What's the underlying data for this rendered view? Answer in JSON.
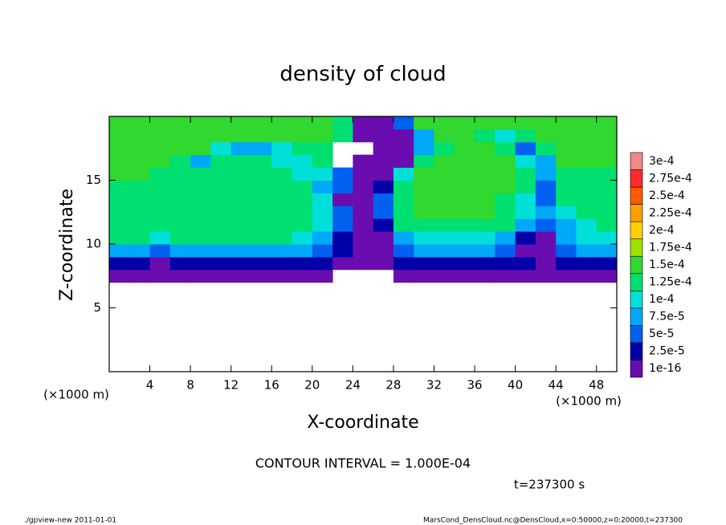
{
  "chart_data": {
    "type": "heatmap",
    "title": "density of cloud",
    "xlabel": "X-coordinate",
    "ylabel": "Z-coordinate",
    "y_unit_label": "(×1000 m)",
    "x_unit_label": "(×1000 m)",
    "contour_label": "CONTOUR INTERVAL = 1.000E-04",
    "time_label": "t=237300 s",
    "footer_left": "./gpview-new  2011-01-01",
    "footer_right": "MarsCond_DensCloud.nc@DensCloud,x=0:50000,z=0:20000,t=237300",
    "xlim": [
      0,
      50
    ],
    "ylim": [
      0,
      20
    ],
    "xticks": [
      4,
      8,
      12,
      16,
      20,
      24,
      28,
      32,
      36,
      40,
      44,
      48
    ],
    "yticks": [
      5,
      10,
      15
    ],
    "x": [
      1,
      3,
      5,
      7,
      9,
      11,
      13,
      15,
      17,
      19,
      21,
      23,
      25,
      27,
      29,
      31,
      33,
      35,
      37,
      39,
      41,
      43,
      45,
      47,
      49
    ],
    "y": [
      7.5,
      8.5,
      9.5,
      10.5,
      11.5,
      12.5,
      13.5,
      14.5,
      15.5,
      16.5,
      17.5,
      18.5,
      19.5
    ],
    "values": [
      [
        1e-05,
        1e-05,
        1e-05,
        1e-05,
        1e-05,
        1e-05,
        1e-05,
        1e-05,
        1e-05,
        1e-05,
        1e-05,
        null,
        null,
        null,
        1e-05,
        1e-05,
        1e-05,
        1e-05,
        1e-05,
        1e-05,
        1e-05,
        1e-05,
        1e-05,
        1e-05,
        1e-05
      ],
      [
        4e-05,
        4e-05,
        2e-05,
        4e-05,
        4e-05,
        4e-05,
        4e-05,
        4e-05,
        4e-05,
        4e-05,
        3e-05,
        1e-05,
        1e-05,
        1e-05,
        3e-05,
        4e-05,
        4e-05,
        4e-05,
        4e-05,
        4e-05,
        3e-05,
        1e-05,
        3e-05,
        4e-05,
        4e-05
      ],
      [
        8e-05,
        8e-05,
        5e-05,
        8e-05,
        8e-05,
        8e-05,
        8e-05,
        8e-05,
        8e-05,
        8e-05,
        7e-05,
        3e-05,
        1e-05,
        2e-05,
        6e-05,
        8e-05,
        8e-05,
        8e-05,
        8e-05,
        6e-05,
        2e-05,
        1e-05,
        6e-05,
        8e-05,
        8e-05
      ],
      [
        0.00013,
        0.00013,
        0.00012,
        0.00013,
        0.00013,
        0.00013,
        0.00013,
        0.00013,
        0.00013,
        0.00012,
        9e-05,
        4e-05,
        1e-05,
        1e-05,
        9e-05,
        0.00011,
        0.00011,
        0.00011,
        0.00011,
        9e-05,
        3e-05,
        2e-05,
        9e-05,
        0.00011,
        0.00011
      ],
      [
        0.00014,
        0.00014,
        0.000135,
        0.00013,
        0.00013,
        0.00013,
        0.00013,
        0.00013,
        0.00013,
        0.00013,
        0.00012,
        6e-05,
        1e-05,
        3e-05,
        0.00013,
        0.00014,
        0.00014,
        0.00014,
        0.00014,
        0.00013,
        8e-05,
        7e-05,
        9e-05,
        0.00012,
        0.00013
      ],
      [
        0.000145,
        0.000145,
        0.00014,
        0.00013,
        0.00013,
        0.00013,
        0.00013,
        0.00013,
        0.00013,
        0.00013,
        0.00012,
        6e-05,
        1e-05,
        6e-05,
        0.00014,
        0.00015,
        0.00015,
        0.00015,
        0.00015,
        0.00014,
        0.00011,
        8e-05,
        0.0001,
        0.00013,
        0.00013
      ],
      [
        0.000145,
        0.000145,
        0.00014,
        0.00013,
        0.000135,
        0.000135,
        0.000135,
        0.000135,
        0.000135,
        0.00013,
        0.00011,
        1e-05,
        1e-05,
        5e-05,
        0.00014,
        0.00015,
        0.00015,
        0.00015,
        0.00015,
        0.000145,
        0.00012,
        6e-05,
        0.00013,
        0.00014,
        0.00014
      ],
      [
        0.000145,
        0.000145,
        0.00014,
        0.000135,
        0.000135,
        0.000135,
        0.000135,
        0.000135,
        0.000135,
        0.00013,
        8e-05,
        5e-05,
        1e-05,
        4e-05,
        0.00014,
        0.00015,
        0.00015,
        0.00015,
        0.00015,
        0.00015,
        0.00013,
        7e-05,
        0.00014,
        0.00014,
        0.00014
      ],
      [
        0.00015,
        0.00015,
        0.000145,
        0.00013,
        0.000135,
        0.000135,
        0.000135,
        0.000135,
        0.00013,
        0.00011,
        0.00012,
        7e-05,
        1e-05,
        1e-05,
        0.00012,
        0.00015,
        0.00015,
        0.00015,
        0.00015,
        0.00015,
        0.00013,
        8e-05,
        0.00014,
        0.00014,
        0.00014
      ],
      [
        0.00015,
        0.00015,
        0.00015,
        0.00014,
        9e-05,
        0.00013,
        0.00013,
        0.00013,
        0.00012,
        0.0001,
        0.00013,
        null,
        1e-05,
        1e-05,
        1e-05,
        0.00013,
        0.00015,
        0.00015,
        0.00015,
        0.00015,
        0.00011,
        9e-05,
        0.00015,
        0.00015,
        0.00015
      ],
      [
        0.00015,
        0.00015,
        0.00015,
        0.00015,
        0.00015,
        0.00012,
        9e-05,
        9e-05,
        0.00012,
        0.00014,
        0.00014,
        null,
        null,
        1e-05,
        2e-05,
        8e-05,
        0.00014,
        0.00015,
        0.00015,
        0.00013,
        7e-05,
        0.00014,
        0.00015,
        0.00015,
        0.00015
      ],
      [
        0.00015,
        0.00015,
        0.00015,
        0.00015,
        0.00015,
        0.00015,
        0.00015,
        0.00015,
        0.00015,
        0.00015,
        0.00015,
        0.00013,
        1e-05,
        1e-05,
        1e-05,
        9e-05,
        0.00015,
        0.00015,
        0.00014,
        0.00012,
        0.00014,
        0.00015,
        0.00015,
        0.00015,
        0.00015
      ],
      [
        0.00015,
        0.00015,
        0.00015,
        0.00015,
        0.00015,
        0.00015,
        0.00015,
        0.00015,
        0.00015,
        0.00015,
        0.00015,
        0.00013,
        1e-05,
        1e-05,
        6e-05,
        0.00015,
        0.00015,
        0.00015,
        0.00015,
        0.00015,
        0.00015,
        0.00015,
        0.00015,
        0.00015,
        0.00015
      ]
    ],
    "colorbar": {
      "levels": [
        {
          "value": 1e-16,
          "label": "1e-16"
        },
        {
          "value": 2.5e-05,
          "label": "2.5e-5"
        },
        {
          "value": 5e-05,
          "label": "5e-5"
        },
        {
          "value": 7.5e-05,
          "label": "7.5e-5"
        },
        {
          "value": 0.0001,
          "label": "1e-4"
        },
        {
          "value": 0.000125,
          "label": "1.25e-4"
        },
        {
          "value": 0.00015,
          "label": "1.5e-4"
        },
        {
          "value": 0.000175,
          "label": "1.75e-4"
        },
        {
          "value": 0.0002,
          "label": "2e-4"
        },
        {
          "value": 0.000225,
          "label": "2.25e-4"
        },
        {
          "value": 0.00025,
          "label": "2.5e-4"
        },
        {
          "value": 0.000275,
          "label": "2.75e-4"
        },
        {
          "value": 0.0003,
          "label": "3e-4"
        }
      ],
      "colors": [
        "#6a0db0",
        "#0000a8",
        "#0060f0",
        "#00a8f8",
        "#00e0d8",
        "#00e070",
        "#30d830",
        "#a0e000",
        "#ffd000",
        "#ffa000",
        "#ff5a00",
        "#ff2a2a",
        "#f08888"
      ]
    }
  }
}
